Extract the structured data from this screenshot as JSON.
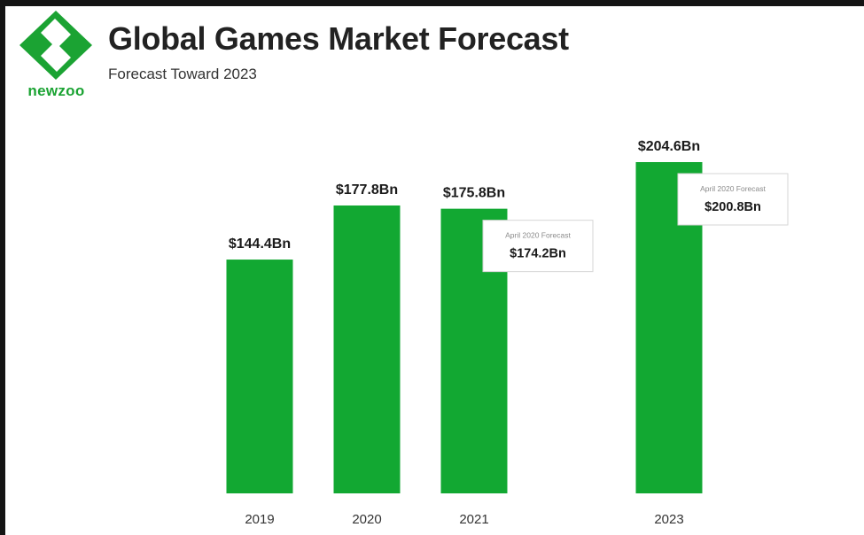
{
  "brand": {
    "name": "newzoo",
    "accent": "#1ba333"
  },
  "header": {
    "title": "Global Games Market Forecast",
    "subtitle": "Forecast Toward 2023"
  },
  "chart_data": {
    "type": "bar",
    "categories": [
      "2019",
      "2020",
      "2021",
      "2023"
    ],
    "values": [
      144.4,
      177.8,
      175.8,
      204.6
    ],
    "value_labels": [
      "$144.4Bn",
      "$177.8Bn",
      "$175.8Bn",
      "$204.6Bn"
    ],
    "unit": "$Bn",
    "bar_color": "#12a832",
    "ylim": [
      0,
      204.6
    ],
    "grid": false,
    "annotations": [
      {
        "category": "2021",
        "label": "April 2020 Forecast",
        "value": 174.2,
        "value_label": "$174.2Bn"
      },
      {
        "category": "2023",
        "label": "April 2020 Forecast",
        "value": 200.8,
        "value_label": "$200.8Bn"
      }
    ]
  }
}
